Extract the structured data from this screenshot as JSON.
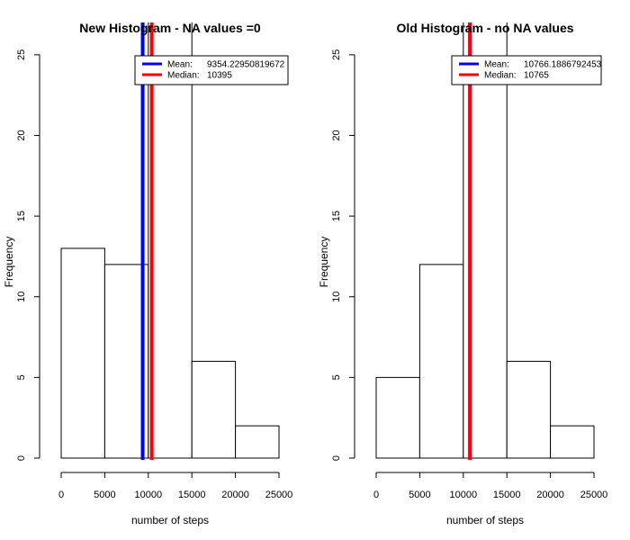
{
  "chart_data": [
    {
      "type": "bar",
      "title": "New Histogram - NA values =0",
      "xlabel": "number of steps",
      "ylabel": "Frequency",
      "bins": [
        [
          0,
          5000
        ],
        [
          5000,
          10000
        ],
        [
          10000,
          15000
        ],
        [
          15000,
          20000
        ],
        [
          20000,
          25000
        ]
      ],
      "values": [
        13,
        12,
        28,
        6,
        2
      ],
      "xticks": [
        "0",
        "5000",
        "10000",
        "15000",
        "20000",
        "25000"
      ],
      "yticks": [
        "0",
        "5",
        "10",
        "15",
        "20",
        "25"
      ],
      "xlim": [
        0,
        25000
      ],
      "ylim": [
        0,
        27
      ],
      "grid": false,
      "legend": "top-right",
      "lines": [
        {
          "label": "Mean:",
          "value": 9354.22950819672,
          "value_text": "9354.22950819672",
          "color": "#0000ff"
        },
        {
          "label": "Median:",
          "value": 10395,
          "value_text": "10395",
          "color": "#ff0000"
        }
      ]
    },
    {
      "type": "bar",
      "title": "Old Histogram - no NA values",
      "xlabel": "number of steps",
      "ylabel": "Frequency",
      "bins": [
        [
          0,
          5000
        ],
        [
          5000,
          10000
        ],
        [
          10000,
          15000
        ],
        [
          15000,
          20000
        ],
        [
          20000,
          25000
        ]
      ],
      "values": [
        5,
        12,
        28,
        6,
        2
      ],
      "xticks": [
        "0",
        "5000",
        "10000",
        "15000",
        "20000",
        "25000"
      ],
      "yticks": [
        "0",
        "5",
        "10",
        "15",
        "20",
        "25"
      ],
      "xlim": [
        0,
        25000
      ],
      "ylim": [
        0,
        27
      ],
      "grid": false,
      "legend": "top-right",
      "lines": [
        {
          "label": "Mean:",
          "value": 10766.1886792453,
          "value_text": "10766.1886792453",
          "color": "#0000ff"
        },
        {
          "label": "Median:",
          "value": 10765,
          "value_text": "10765",
          "color": "#ff0000"
        }
      ]
    }
  ]
}
